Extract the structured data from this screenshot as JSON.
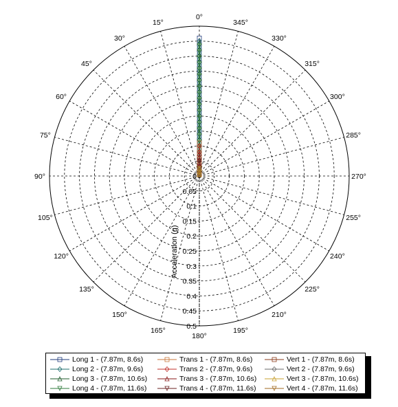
{
  "chart_data": {
    "type": "polar-scatter",
    "angle_direction": "counterclockwise",
    "angle_zero": "top",
    "angle_ticks": [
      "0°",
      "15°",
      "30°",
      "45°",
      "60°",
      "75°",
      "90°",
      "105°",
      "120°",
      "135°",
      "150°",
      "165°",
      "180°",
      "195°",
      "210°",
      "225°",
      "240°",
      "255°",
      "270°",
      "285°",
      "300°",
      "315°",
      "330°",
      "345°"
    ],
    "radial_label": "Acceleration (g)",
    "radial_ticks": [
      "0",
      "0.05",
      "0.1",
      "0.15",
      "0.2",
      "0.25",
      "0.3",
      "0.35",
      "0.4",
      "0.45",
      "0.5"
    ],
    "radial_range": [
      0,
      0.5
    ],
    "grid": true,
    "legend_position": "bottom",
    "series": [
      {
        "name": "Long 1 - (7.87m, 8.6s)",
        "marker": "square",
        "color": "#1f3a7a",
        "angle": 0,
        "values": [
          0.005,
          0.02,
          0.04,
          0.06,
          0.08,
          0.1,
          0.12,
          0.14,
          0.16,
          0.18,
          0.2,
          0.22,
          0.24,
          0.26,
          0.28,
          0.3,
          0.32,
          0.34,
          0.36,
          0.38,
          0.4,
          0.42,
          0.44,
          0.46
        ]
      },
      {
        "name": "Long 2 - (7.87m, 9.6s)",
        "marker": "diamond",
        "color": "#1e6e6e",
        "angle": 0,
        "values": [
          0.01,
          0.03,
          0.05,
          0.07,
          0.09,
          0.11,
          0.13,
          0.15,
          0.17,
          0.19,
          0.21,
          0.23,
          0.25,
          0.27,
          0.29,
          0.31,
          0.33,
          0.35,
          0.37,
          0.39,
          0.41,
          0.43,
          0.45
        ]
      },
      {
        "name": "Long 3 - (7.87m, 10.6s)",
        "marker": "triangle",
        "color": "#1e5a2a",
        "angle": 0,
        "values": [
          0.008,
          0.025,
          0.045,
          0.065,
          0.085,
          0.105,
          0.125,
          0.145,
          0.165,
          0.185,
          0.205,
          0.225,
          0.245,
          0.265,
          0.285,
          0.305,
          0.325,
          0.345,
          0.365,
          0.385,
          0.405,
          0.425,
          0.445
        ]
      },
      {
        "name": "Long 4 - (7.87m, 11.6s)",
        "marker": "tri-down",
        "color": "#2d7a3a",
        "angle": 0,
        "values": [
          0.012,
          0.035,
          0.055,
          0.075,
          0.095,
          0.115,
          0.135,
          0.155,
          0.175,
          0.195,
          0.215,
          0.235,
          0.255,
          0.275,
          0.295,
          0.315,
          0.335,
          0.355,
          0.375,
          0.395,
          0.415,
          0.435
        ]
      },
      {
        "name": "Trans 1 - (7.87m, 8.6s)",
        "marker": "square",
        "color": "#c8783c",
        "angle": 0,
        "values": [
          0.005,
          0.015,
          0.03,
          0.05,
          0.07,
          0.09,
          0.11
        ]
      },
      {
        "name": "Trans 2 - (7.87m, 9.6s)",
        "marker": "diamond",
        "color": "#c0302a",
        "angle": 0,
        "values": [
          0.01,
          0.025,
          0.04,
          0.06,
          0.08,
          0.1
        ]
      },
      {
        "name": "Trans 3 - (7.87m, 10.6s)",
        "marker": "triangle",
        "color": "#8a1a1a",
        "angle": 0,
        "values": [
          0.008,
          0.02,
          0.035,
          0.055,
          0.075
        ]
      },
      {
        "name": "Trans 4 - (7.87m, 11.6s)",
        "marker": "tri-down",
        "color": "#6a2020",
        "angle": 0,
        "values": [
          0.006,
          0.018,
          0.032,
          0.05
        ]
      },
      {
        "name": "Vert 1 - (7.87m, 8.6s)",
        "marker": "square",
        "color": "#8a3a1a",
        "angle": 0,
        "values": [
          0.004,
          0.012,
          0.022
        ]
      },
      {
        "name": "Vert 2 - (7.87m, 9.6s)",
        "marker": "diamond",
        "color": "#6a6a6a",
        "angle": 0,
        "values": [
          0.006,
          0.015,
          0.025
        ]
      },
      {
        "name": "Vert 3 - (7.87m, 10.6s)",
        "marker": "triangle",
        "color": "#c8a030",
        "angle": 0,
        "values": [
          0.005,
          0.014,
          0.024
        ]
      },
      {
        "name": "Vert 4 - (7.87m, 11.6s)",
        "marker": "tri-down",
        "color": "#a06a20",
        "angle": 0,
        "values": [
          0.007,
          0.016,
          0.026
        ]
      }
    ]
  }
}
